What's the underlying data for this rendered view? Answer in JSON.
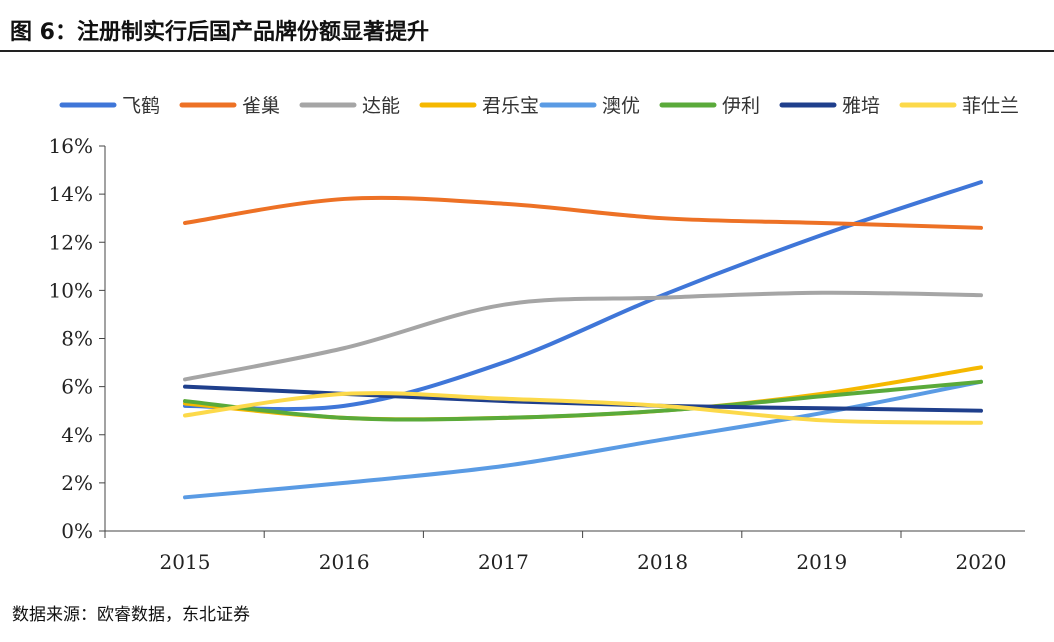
{
  "title": "图 6：注册制实行后国产品牌份额显著提升",
  "source": "数据来源：欧睿数据，东北证券",
  "chart_data": {
    "type": "line",
    "categories": [
      "2015",
      "2016",
      "2017",
      "2018",
      "2019",
      "2020"
    ],
    "yticks": [
      "0%",
      "2%",
      "4%",
      "6%",
      "8%",
      "10%",
      "12%",
      "14%",
      "16%"
    ],
    "ylim": [
      0,
      16
    ],
    "legend_position": "top",
    "series": [
      {
        "name": "飞鹤",
        "color": "#3f76d8",
        "values": [
          5.2,
          5.2,
          7.0,
          9.8,
          12.3,
          14.5
        ]
      },
      {
        "name": "雀巢",
        "color": "#ed7125",
        "values": [
          12.8,
          13.8,
          13.6,
          13.0,
          12.8,
          12.6
        ]
      },
      {
        "name": "达能",
        "color": "#a5a5a5",
        "values": [
          6.3,
          7.6,
          9.4,
          9.7,
          9.9,
          9.8
        ]
      },
      {
        "name": "君乐宝",
        "color": "#f5b800",
        "values": [
          5.3,
          4.7,
          4.7,
          5.0,
          5.7,
          6.8
        ]
      },
      {
        "name": "澳优",
        "color": "#5a9be4",
        "values": [
          1.4,
          2.0,
          2.7,
          3.8,
          4.9,
          6.2
        ]
      },
      {
        "name": "伊利",
        "color": "#5aaa3a",
        "values": [
          5.4,
          4.7,
          4.7,
          5.0,
          5.6,
          6.2
        ]
      },
      {
        "name": "雅培",
        "color": "#1f3f8c",
        "values": [
          6.0,
          5.7,
          5.4,
          5.2,
          5.1,
          5.0
        ]
      },
      {
        "name": "菲仕兰",
        "color": "#fcd94a",
        "values": [
          4.8,
          5.7,
          5.5,
          5.2,
          4.6,
          4.5
        ]
      }
    ]
  }
}
